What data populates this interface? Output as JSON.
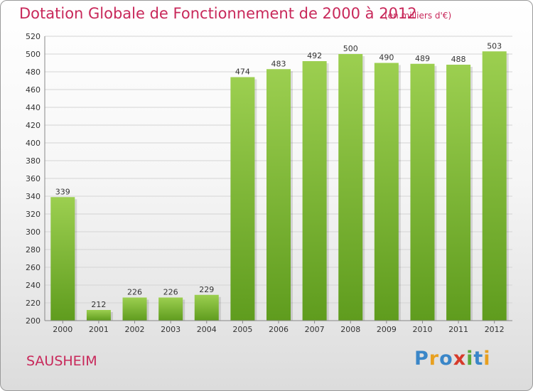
{
  "title": "Dotation Globale de Fonctionnement de 2000 à 2012",
  "subtitle": "(en milliers d'€)",
  "city": "SAUSHEIM",
  "brand": {
    "letters": [
      "P",
      "r",
      "o",
      "x",
      "i",
      "t",
      "i"
    ],
    "colors": [
      "#3a86c8",
      "#e8a020",
      "#3a86c8",
      "#d63a2a",
      "#5aaa3a",
      "#3a86c8",
      "#e8a020"
    ]
  },
  "colors": {
    "accent": "#c8285a",
    "bar_top": "#9ccf50",
    "bar_bottom": "#5f9c1e"
  },
  "chart_data": {
    "type": "bar",
    "categories": [
      "2000",
      "2001",
      "2002",
      "2003",
      "2004",
      "2005",
      "2006",
      "2007",
      "2008",
      "2009",
      "2010",
      "2011",
      "2012"
    ],
    "values": [
      339,
      212,
      226,
      226,
      229,
      474,
      483,
      492,
      500,
      490,
      489,
      488,
      503
    ],
    "ylim": [
      200,
      520
    ],
    "yticks": [
      200,
      220,
      240,
      260,
      280,
      300,
      320,
      340,
      360,
      380,
      400,
      420,
      440,
      460,
      480,
      500,
      520
    ],
    "grid": true,
    "title": "Dotation Globale de Fonctionnement de 2000 à 2012",
    "xlabel": "",
    "ylabel": ""
  }
}
